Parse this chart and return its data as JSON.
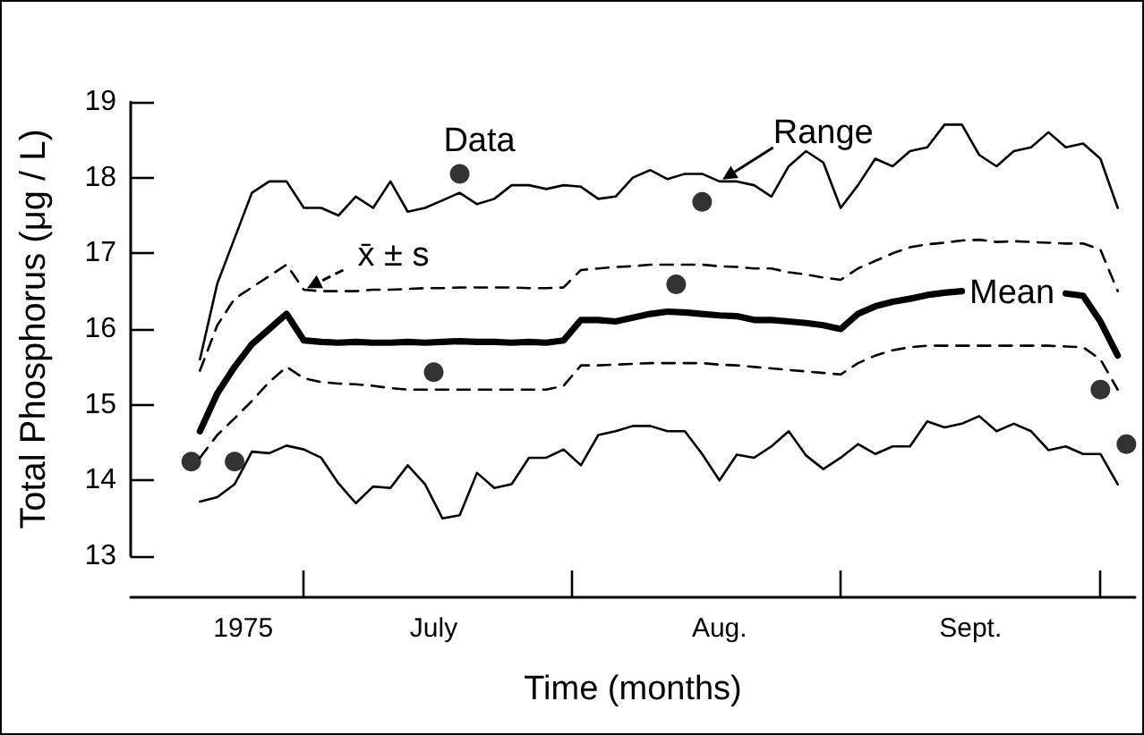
{
  "chart_data": {
    "type": "line",
    "xlabel": "Time (months)",
    "ylabel": "Total Phosphorus (μg / L)",
    "xlim": [
      "1975-06-11",
      "1975-10-05"
    ],
    "ylim": [
      13,
      19
    ],
    "yticks": [
      13,
      14,
      15,
      16,
      17,
      18,
      19
    ],
    "xticks": [
      {
        "value": "1975-06-24",
        "label": "1975"
      },
      {
        "value": "1975-07-01",
        "label": null
      },
      {
        "value": "1975-07-16",
        "label": "July"
      },
      {
        "value": "1975-08-01",
        "label": null
      },
      {
        "value": "1975-08-18",
        "label": "Aug."
      },
      {
        "value": "1975-09-01",
        "label": null
      },
      {
        "value": "1975-09-16",
        "label": "Sept."
      },
      {
        "value": "1975-10-01",
        "label": null
      }
    ],
    "grid": false,
    "x": [
      "1975-06-19",
      "1975-06-21",
      "1975-06-23",
      "1975-06-25",
      "1975-06-27",
      "1975-06-29",
      "1975-07-01",
      "1975-07-03",
      "1975-07-05",
      "1975-07-07",
      "1975-07-09",
      "1975-07-11",
      "1975-07-13",
      "1975-07-15",
      "1975-07-17",
      "1975-07-19",
      "1975-07-21",
      "1975-07-23",
      "1975-07-25",
      "1975-07-27",
      "1975-07-29",
      "1975-07-31",
      "1975-08-02",
      "1975-08-04",
      "1975-08-06",
      "1975-08-08",
      "1975-08-10",
      "1975-08-12",
      "1975-08-14",
      "1975-08-16",
      "1975-08-18",
      "1975-08-20",
      "1975-08-22",
      "1975-08-24",
      "1975-08-26",
      "1975-08-28",
      "1975-08-30",
      "1975-09-01",
      "1975-09-03",
      "1975-09-05",
      "1975-09-07",
      "1975-09-09",
      "1975-09-11",
      "1975-09-13",
      "1975-09-15",
      "1975-09-17",
      "1975-09-19",
      "1975-09-21",
      "1975-09-23",
      "1975-09-25",
      "1975-09-27",
      "1975-09-29",
      "1975-10-01",
      "1975-10-03"
    ],
    "series": [
      {
        "name": "Range",
        "color": "#000000",
        "marker": "none",
        "line_style": "solid",
        "values": [
          15.6,
          16.6,
          17.2,
          17.8,
          17.95,
          17.95,
          17.6,
          17.6,
          17.5,
          17.75,
          17.6,
          17.95,
          17.55,
          17.6,
          17.7,
          17.8,
          17.65,
          17.72,
          17.9,
          17.9,
          17.85,
          17.9,
          17.88,
          17.72,
          17.75,
          18.0,
          18.1,
          17.98,
          18.05,
          18.05,
          17.95,
          17.95,
          17.9,
          17.75,
          18.15,
          18.35,
          18.2,
          17.6,
          17.9,
          18.25,
          18.15,
          18.35,
          18.4,
          18.7,
          18.7,
          18.3,
          18.15,
          18.35,
          18.4,
          18.6,
          18.4,
          18.45,
          18.25,
          17.6
        ]
      },
      {
        "color": "#000000",
        "marker": "none",
        "line_style": "solid",
        "values": [
          13.72,
          13.78,
          13.95,
          14.38,
          14.36,
          14.46,
          14.41,
          14.3,
          13.96,
          13.7,
          13.92,
          13.9,
          14.2,
          13.95,
          13.5,
          13.54,
          14.1,
          13.9,
          13.95,
          14.3,
          14.3,
          14.41,
          14.2,
          14.6,
          14.65,
          14.72,
          14.72,
          14.65,
          14.65,
          14.35,
          14.0,
          14.34,
          14.3,
          14.45,
          14.65,
          14.33,
          14.15,
          14.3,
          14.48,
          14.35,
          14.45,
          14.45,
          14.78,
          14.7,
          14.75,
          14.85,
          14.65,
          14.75,
          14.65,
          14.4,
          14.45,
          14.35,
          14.35,
          13.95
        ]
      },
      {
        "name": "x̄ ± s",
        "color": "#000000",
        "marker": "none",
        "line_style": "dashed",
        "values": [
          15.45,
          16.05,
          16.4,
          16.55,
          16.7,
          16.85,
          16.52,
          16.5,
          16.5,
          16.5,
          16.52,
          16.52,
          16.53,
          16.54,
          16.54,
          16.55,
          16.55,
          16.55,
          16.55,
          16.54,
          16.54,
          16.55,
          16.78,
          16.8,
          16.82,
          16.83,
          16.85,
          16.85,
          16.85,
          16.85,
          16.83,
          16.82,
          16.8,
          16.8,
          16.75,
          16.72,
          16.68,
          16.65,
          16.8,
          16.9,
          17.0,
          17.08,
          17.12,
          17.14,
          17.17,
          17.18,
          17.15,
          17.16,
          17.15,
          17.14,
          17.13,
          17.13,
          17.05,
          16.5
        ]
      },
      {
        "color": "#000000",
        "marker": "none",
        "line_style": "dashed",
        "values": [
          14.3,
          14.6,
          14.82,
          15.05,
          15.3,
          15.5,
          15.35,
          15.3,
          15.28,
          15.27,
          15.25,
          15.22,
          15.2,
          15.2,
          15.2,
          15.2,
          15.2,
          15.2,
          15.2,
          15.2,
          15.2,
          15.25,
          15.52,
          15.52,
          15.53,
          15.54,
          15.55,
          15.55,
          15.55,
          15.55,
          15.53,
          15.52,
          15.5,
          15.48,
          15.46,
          15.44,
          15.42,
          15.4,
          15.55,
          15.65,
          15.72,
          15.76,
          15.78,
          15.78,
          15.78,
          15.78,
          15.78,
          15.78,
          15.78,
          15.78,
          15.77,
          15.76,
          15.6,
          15.2
        ]
      },
      {
        "name": "Mean",
        "color": "#000000",
        "marker": "none",
        "line_style": "solid",
        "values": [
          14.65,
          15.15,
          15.5,
          15.8,
          16.0,
          16.2,
          15.85,
          15.83,
          15.82,
          15.83,
          15.82,
          15.82,
          15.83,
          15.82,
          15.83,
          15.84,
          15.83,
          15.83,
          15.82,
          15.83,
          15.82,
          15.85,
          16.12,
          16.12,
          16.1,
          16.15,
          16.2,
          16.23,
          16.22,
          16.2,
          16.18,
          16.17,
          16.12,
          16.12,
          16.1,
          16.08,
          16.05,
          16.0,
          16.2,
          16.3,
          16.36,
          16.4,
          16.45,
          16.48,
          16.5,
          null,
          null,
          null,
          null,
          null,
          16.47,
          16.44,
          16.1,
          15.65
        ]
      },
      {
        "name": "Data",
        "type": "scatter",
        "color": "#000000",
        "marker": "circle",
        "x": [
          "1975-06-18",
          "1975-06-23",
          "1975-07-16",
          "1975-07-19",
          "1975-08-13",
          "1975-08-16",
          "1975-10-01",
          "1975-10-04"
        ],
        "values": [
          14.25,
          14.25,
          15.43,
          18.05,
          16.59,
          17.68,
          15.2,
          14.48
        ]
      }
    ]
  }
}
